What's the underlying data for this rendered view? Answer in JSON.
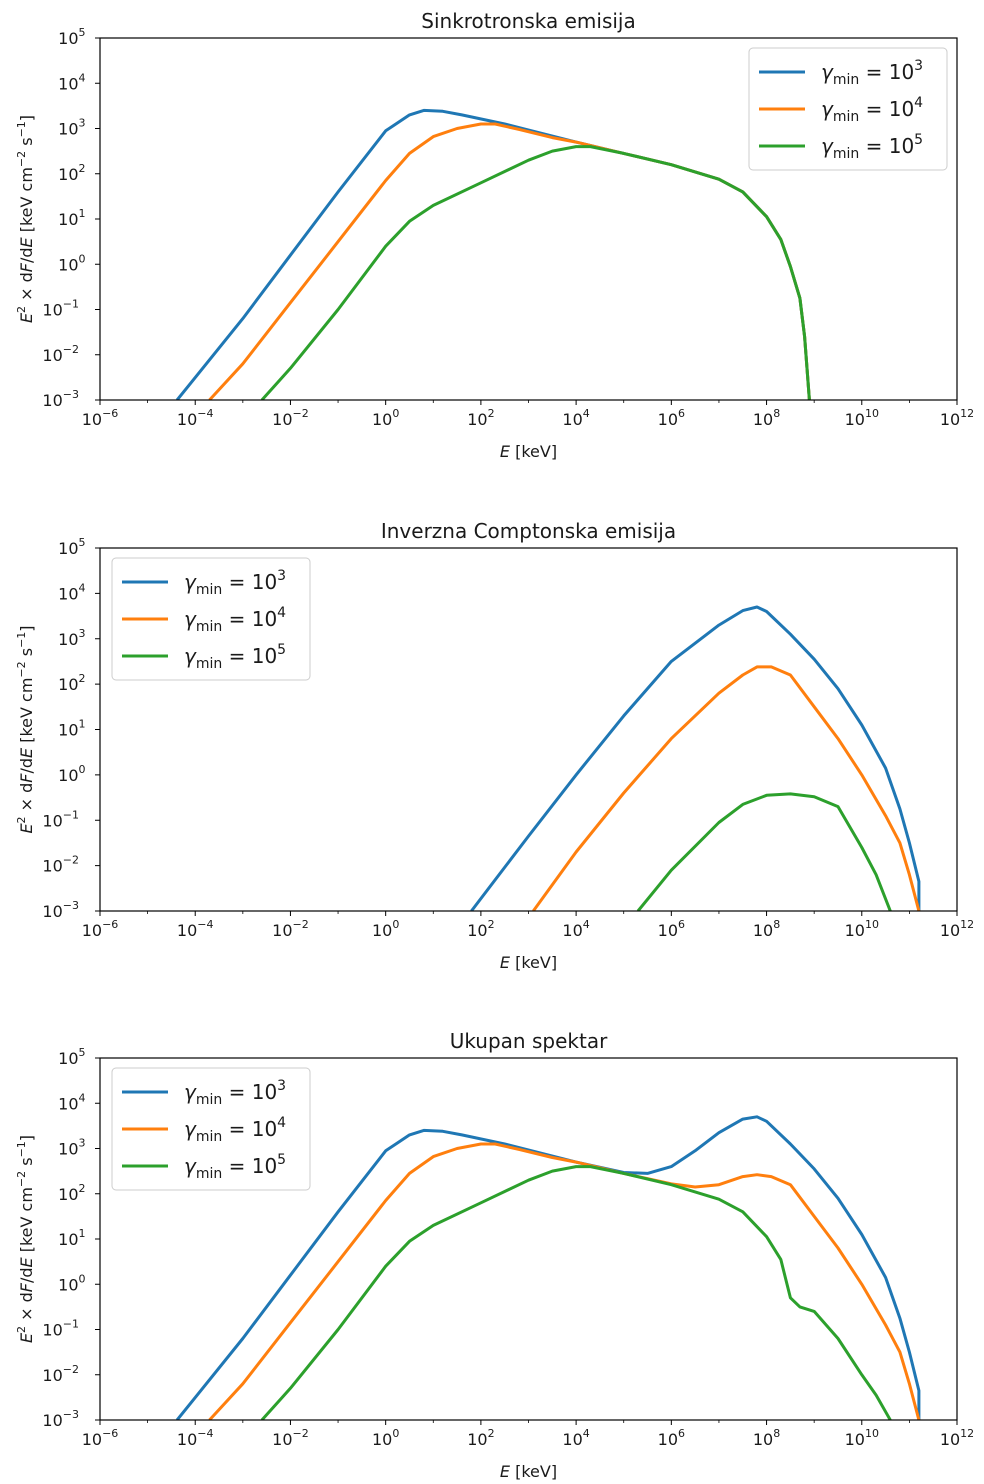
{
  "colors": {
    "gamma_1e3": "#1f77b4",
    "gamma_1e4": "#ff7f0e",
    "gamma_1e5": "#2ca02c",
    "axes": "#000000",
    "background": "#ffffff"
  },
  "legend_text": {
    "gamma_symbol": "γ",
    "subscript": "min",
    "equals_base": " = 10",
    "exponents": [
      "3",
      "4",
      "5"
    ]
  },
  "chart_data": [
    {
      "type": "line",
      "title": "Sinkrotronska emisija",
      "xlabel": "E [keV]",
      "ylabel": "E² × dF/dE [keV cm⁻² s⁻¹]",
      "xscale": "log",
      "yscale": "log",
      "xlim": [
        1e-06,
        1000000000000.0
      ],
      "ylim": [
        0.001,
        100000.0
      ],
      "x_tick_exponents": [
        -6,
        -4,
        -2,
        0,
        2,
        4,
        6,
        8,
        10,
        12
      ],
      "y_tick_exponents": [
        -3,
        -2,
        -1,
        0,
        1,
        2,
        3,
        4,
        5
      ],
      "legend_position": "upper right",
      "series": [
        {
          "name": "γmin = 10³",
          "color_key": "gamma_1e3",
          "log_x": [
            -4.38,
            -3,
            -2,
            -1,
            0,
            0.5,
            0.8,
            1.2,
            1.6,
            2.5,
            4,
            5,
            6,
            7,
            7.5,
            8,
            8.3,
            8.5,
            8.7,
            8.8,
            8.85,
            8.9
          ],
          "log_y": [
            -3,
            -1.2,
            0.2,
            1.6,
            2.95,
            3.3,
            3.4,
            3.38,
            3.3,
            3.1,
            2.7,
            2.45,
            2.2,
            1.88,
            1.6,
            1.05,
            0.55,
            -0.05,
            -0.75,
            -1.6,
            -2.3,
            -3
          ]
        },
        {
          "name": "γmin = 10⁴",
          "color_key": "gamma_1e4",
          "log_x": [
            -3.7,
            -3,
            -2,
            -1,
            0,
            0.5,
            1,
            1.5,
            2,
            2.3,
            2.8,
            3.5,
            4,
            5,
            6,
            7,
            7.5,
            8,
            8.3,
            8.5,
            8.7,
            8.8,
            8.85,
            8.9
          ],
          "log_y": [
            -3,
            -2.2,
            -0.85,
            0.5,
            1.85,
            2.45,
            2.82,
            3.0,
            3.1,
            3.1,
            2.98,
            2.8,
            2.7,
            2.45,
            2.2,
            1.88,
            1.6,
            1.05,
            0.55,
            -0.05,
            -0.75,
            -1.6,
            -2.3,
            -3
          ]
        },
        {
          "name": "γmin = 10⁵",
          "color_key": "gamma_1e5",
          "log_x": [
            -2.6,
            -2,
            -1,
            0,
            0.5,
            1,
            2,
            3,
            3.5,
            4,
            4.3,
            5,
            6,
            7,
            7.5,
            8,
            8.3,
            8.5,
            8.7,
            8.8,
            8.85,
            8.9
          ],
          "log_y": [
            -3,
            -2.3,
            -1,
            0.4,
            0.95,
            1.3,
            1.8,
            2.3,
            2.5,
            2.6,
            2.6,
            2.45,
            2.2,
            1.88,
            1.6,
            1.05,
            0.55,
            -0.05,
            -0.75,
            -1.6,
            -2.3,
            -3
          ]
        }
      ]
    },
    {
      "type": "line",
      "title": "Inverzna Comptonska emisija",
      "xlabel": "E [keV]",
      "ylabel": "E² × dF/dE [keV cm⁻² s⁻¹]",
      "xscale": "log",
      "yscale": "log",
      "xlim": [
        1e-06,
        1000000000000.0
      ],
      "ylim": [
        0.001,
        100000.0
      ],
      "x_tick_exponents": [
        -6,
        -4,
        -2,
        0,
        2,
        4,
        6,
        8,
        10,
        12
      ],
      "y_tick_exponents": [
        -3,
        -2,
        -1,
        0,
        1,
        2,
        3,
        4,
        5
      ],
      "legend_position": "upper left",
      "series": [
        {
          "name": "γmin = 10³",
          "color_key": "gamma_1e3",
          "log_x": [
            1.8,
            3,
            4,
            5,
            6,
            7,
            7.5,
            7.8,
            8,
            8.5,
            9,
            9.5,
            10,
            10.5,
            10.8,
            11,
            11.2,
            11.2
          ],
          "log_y": [
            -3,
            -1.35,
            0,
            1.3,
            2.5,
            3.3,
            3.62,
            3.7,
            3.6,
            3.1,
            2.55,
            1.9,
            1.1,
            0.15,
            -0.75,
            -1.5,
            -2.35,
            -3
          ]
        },
        {
          "name": "γmin = 10⁴",
          "color_key": "gamma_1e4",
          "log_x": [
            3.1,
            4,
            5,
            6,
            7,
            7.5,
            7.8,
            8.1,
            8.5,
            9,
            9.5,
            10,
            10.5,
            10.8,
            11,
            11.2
          ],
          "log_y": [
            -3,
            -1.7,
            -0.4,
            0.8,
            1.8,
            2.2,
            2.38,
            2.38,
            2.2,
            1.5,
            0.8,
            0,
            -0.9,
            -1.5,
            -2.2,
            -3
          ]
        },
        {
          "name": "γmin = 10⁵",
          "color_key": "gamma_1e5",
          "log_x": [
            5.3,
            6,
            7,
            7.5,
            8,
            8.5,
            9,
            9.5,
            10,
            10.3,
            10.6
          ],
          "log_y": [
            -3,
            -2.1,
            -1.05,
            -0.65,
            -0.45,
            -0.42,
            -0.48,
            -0.7,
            -1.6,
            -2.2,
            -3
          ]
        }
      ]
    },
    {
      "type": "line",
      "title": "Ukupan spektar",
      "xlabel": "E [keV]",
      "ylabel": "E² × dF/dE [keV cm⁻² s⁻¹]",
      "xscale": "log",
      "yscale": "log",
      "xlim": [
        1e-06,
        1000000000000.0
      ],
      "ylim": [
        0.001,
        100000.0
      ],
      "x_tick_exponents": [
        -6,
        -4,
        -2,
        0,
        2,
        4,
        6,
        8,
        10,
        12
      ],
      "y_tick_exponents": [
        -3,
        -2,
        -1,
        0,
        1,
        2,
        3,
        4,
        5
      ],
      "legend_position": "upper left",
      "series": [
        {
          "name": "γmin = 10³",
          "color_key": "gamma_1e3",
          "log_x": [
            -4.38,
            -3,
            -2,
            -1,
            0,
            0.5,
            0.8,
            1.2,
            1.6,
            2.5,
            4,
            5,
            5.5,
            6,
            6.5,
            7,
            7.5,
            7.8,
            8,
            8.5,
            9,
            9.5,
            10,
            10.5,
            10.8,
            11,
            11.2,
            11.2
          ],
          "log_y": [
            -3,
            -1.2,
            0.2,
            1.6,
            2.95,
            3.3,
            3.4,
            3.38,
            3.3,
            3.1,
            2.7,
            2.47,
            2.45,
            2.6,
            2.95,
            3.35,
            3.65,
            3.7,
            3.6,
            3.1,
            2.55,
            1.9,
            1.1,
            0.15,
            -0.75,
            -1.5,
            -2.35,
            -3
          ]
        },
        {
          "name": "γmin = 10⁴",
          "color_key": "gamma_1e4",
          "log_x": [
            -3.7,
            -3,
            -2,
            -1,
            0,
            0.5,
            1,
            1.5,
            2,
            2.3,
            2.8,
            3.5,
            4,
            5,
            6,
            6.5,
            7,
            7.5,
            7.8,
            8.1,
            8.5,
            9,
            9.5,
            10,
            10.5,
            10.8,
            11,
            11.2
          ],
          "log_y": [
            -3,
            -2.2,
            -0.85,
            0.5,
            1.85,
            2.45,
            2.82,
            3.0,
            3.1,
            3.1,
            2.98,
            2.8,
            2.7,
            2.45,
            2.22,
            2.15,
            2.2,
            2.38,
            2.42,
            2.38,
            2.2,
            1.5,
            0.8,
            0,
            -0.9,
            -1.5,
            -2.2,
            -3
          ]
        },
        {
          "name": "γmin = 10⁵",
          "color_key": "gamma_1e5",
          "log_x": [
            -2.6,
            -2,
            -1,
            0,
            0.5,
            1,
            2,
            3,
            3.5,
            4,
            4.3,
            5,
            6,
            7,
            7.5,
            8,
            8.3,
            8.5,
            8.7,
            9,
            9.5,
            10,
            10.3,
            10.6
          ],
          "log_y": [
            -3,
            -2.3,
            -1,
            0.4,
            0.95,
            1.3,
            1.8,
            2.3,
            2.5,
            2.6,
            2.6,
            2.45,
            2.2,
            1.88,
            1.6,
            1.05,
            0.55,
            -0.3,
            -0.5,
            -0.6,
            -1.2,
            -2.0,
            -2.45,
            -3
          ]
        }
      ]
    }
  ]
}
